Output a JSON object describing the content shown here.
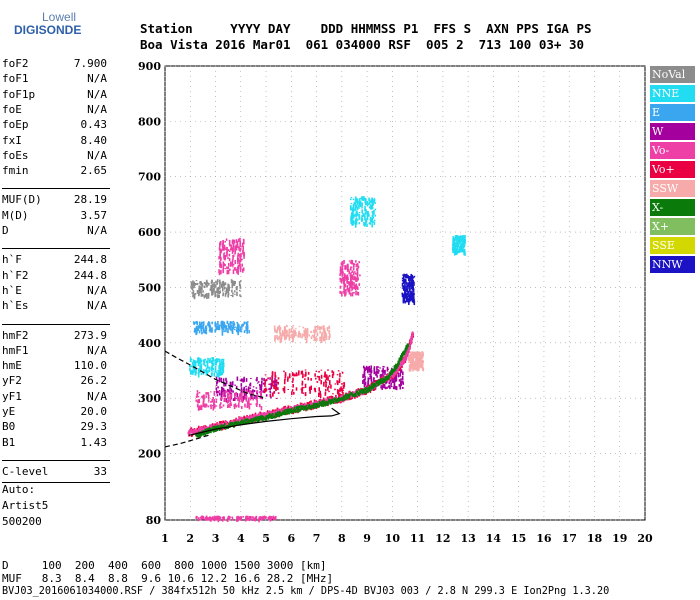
{
  "logo": {
    "top": "Lowell",
    "bottom": "DIGISONDE"
  },
  "header": {
    "line1": "Station     YYYY DAY    DDD HHMMSS P1  FFS S  AXN PPS IGA PS",
    "line2": "Boa Vista 2016 Mar01  061 034000 RSF  005 2  713 100 03+ 30"
  },
  "params": [
    {
      "name": "foF2",
      "value": "7.900"
    },
    {
      "name": "foF1",
      "value": "N/A"
    },
    {
      "name": "foF1p",
      "value": "N/A"
    },
    {
      "name": "foE",
      "value": "N/A"
    },
    {
      "name": "foEp",
      "value": "0.43"
    },
    {
      "name": "fxI",
      "value": "8.40"
    },
    {
      "name": "foEs",
      "value": "N/A"
    },
    {
      "name": "fmin",
      "value": "2.65"
    },
    {
      "name": "MUF(D)",
      "value": "28.19"
    },
    {
      "name": "M(D)",
      "value": "3.57"
    },
    {
      "name": "D",
      "value": "N/A"
    },
    {
      "name": "h`F",
      "value": "244.8"
    },
    {
      "name": "h`F2",
      "value": "244.8"
    },
    {
      "name": "h`E",
      "value": "N/A"
    },
    {
      "name": "h`Es",
      "value": "N/A"
    },
    {
      "name": "hmF2",
      "value": "273.9"
    },
    {
      "name": "hmF1",
      "value": "N/A"
    },
    {
      "name": "hmE",
      "value": "110.0"
    },
    {
      "name": "yF2",
      "value": "26.2"
    },
    {
      "name": "yF1",
      "value": "N/A"
    },
    {
      "name": "yE",
      "value": "20.0"
    },
    {
      "name": "B0",
      "value": "29.3"
    },
    {
      "name": "B1",
      "value": "1.43"
    },
    {
      "name": "C-level",
      "value": "33"
    }
  ],
  "auto": {
    "label": "Auto:",
    "line1": "Artist5",
    "line2": "500200"
  },
  "legend": [
    {
      "label": "NoVal",
      "color": "#8c8c8c"
    },
    {
      "label": "NNE",
      "color": "#22ddf2"
    },
    {
      "label": "E",
      "color": "#3aa6f0"
    },
    {
      "label": "W",
      "color": "#a4009e"
    },
    {
      "label": "Vo-",
      "color": "#ee3fa6"
    },
    {
      "label": "Vo+",
      "color": "#ea0042"
    },
    {
      "label": "SSW",
      "color": "#f6aaaa"
    },
    {
      "label": "X-",
      "color": "#0a7a0a"
    },
    {
      "label": "X+",
      "color": "#80be60"
    },
    {
      "label": "SSE",
      "color": "#d2d800"
    },
    {
      "label": "NNW",
      "color": "#1a12c4"
    }
  ],
  "footer": {
    "d_line": "D     100  200  400  600  800 1000 1500 3000 [km]",
    "muf_line": "MUF   8.3  8.4  8.8  9.6 10.6 12.2 16.6 28.2 [MHz]",
    "file_line": "BVJ03_2016061034000.RSF / 384fx512h 50 kHz 2.5 km / DPS-4D BVJ03 003 / 2.8 N 299.3 E Ion2Png 1.3.20"
  },
  "chart_data": {
    "type": "scatter",
    "xlim": [
      1,
      20
    ],
    "ylim": [
      80,
      900
    ],
    "x_ticks": [
      1,
      2,
      3,
      4,
      5,
      6,
      7,
      8,
      9,
      10,
      11,
      12,
      13,
      14,
      15,
      16,
      17,
      18,
      19,
      20
    ],
    "y_ticks": [
      80,
      200,
      300,
      400,
      500,
      600,
      700,
      800,
      900
    ],
    "grid": "dotted",
    "legend_position": "right",
    "trace_o": {
      "x": [
        1.9,
        3,
        4,
        5,
        6,
        7,
        8,
        9,
        10,
        10.5,
        10.8
      ],
      "y": [
        240,
        250,
        262,
        272,
        282,
        292,
        302,
        318,
        345,
        375,
        420
      ]
    },
    "trace_x": {
      "x": [
        2.2,
        3,
        4,
        5,
        6,
        7,
        8,
        9,
        9.8,
        10.2,
        10.6
      ],
      "y": [
        235,
        248,
        258,
        268,
        280,
        290,
        302,
        318,
        340,
        365,
        400
      ]
    },
    "profile_solid": {
      "x": [
        1.95,
        3,
        4,
        5,
        6,
        7,
        7.6,
        7.9,
        7.6
      ],
      "y": [
        233,
        244,
        252,
        258,
        263,
        267,
        268,
        272,
        282
      ]
    },
    "profile_dashed": {
      "x": [
        1,
        1.5,
        2,
        2.5,
        3,
        3.6,
        4.3,
        5
      ],
      "y": [
        385,
        372,
        360,
        347,
        334,
        322,
        308,
        300
      ]
    },
    "profile_dashed_low": {
      "x": [
        1,
        1.6,
        2.2,
        2.8
      ],
      "y": [
        212,
        218,
        226,
        234
      ]
    },
    "clusters": [
      {
        "x": 4.2,
        "y": 320,
        "w": 2.4,
        "h": 40,
        "colorIdx": 3
      },
      {
        "x": 6.5,
        "y": 330,
        "w": 3.2,
        "h": 45,
        "colorIdx": 5
      },
      {
        "x": 3.5,
        "y": 300,
        "w": 2.6,
        "h": 30,
        "colorIdx": 4
      },
      {
        "x": 9.6,
        "y": 340,
        "w": 1.6,
        "h": 40,
        "colorIdx": 3
      },
      {
        "x": 3.2,
        "y": 430,
        "w": 2.2,
        "h": 20,
        "colorIdx": 2
      },
      {
        "x": 3.0,
        "y": 500,
        "w": 2.0,
        "h": 30,
        "colorIdx": 0
      },
      {
        "x": 3.6,
        "y": 560,
        "w": 1.0,
        "h": 60,
        "colorIdx": 4
      },
      {
        "x": 6.4,
        "y": 420,
        "w": 2.2,
        "h": 25,
        "colorIdx": 6
      },
      {
        "x": 8.3,
        "y": 520,
        "w": 0.8,
        "h": 60,
        "colorIdx": 4
      },
      {
        "x": 8.8,
        "y": 640,
        "w": 1.0,
        "h": 50,
        "colorIdx": 1
      },
      {
        "x": 10.6,
        "y": 500,
        "w": 0.5,
        "h": 50,
        "colorIdx": 10
      },
      {
        "x": 12.6,
        "y": 580,
        "w": 0.5,
        "h": 30,
        "colorIdx": 1
      },
      {
        "x": 3.8,
        "y": 86,
        "w": 3.2,
        "h": 4,
        "colorIdx": 4
      },
      {
        "x": 10.9,
        "y": 370,
        "w": 0.6,
        "h": 30,
        "colorIdx": 6
      },
      {
        "x": 2.6,
        "y": 360,
        "w": 1.4,
        "h": 30,
        "colorIdx": 1
      }
    ]
  }
}
